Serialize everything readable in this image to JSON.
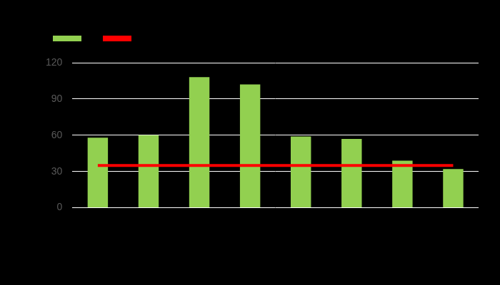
{
  "chart_data": {
    "type": "bar",
    "categories": [
      null,
      null,
      null,
      null,
      null,
      null,
      null,
      null
    ],
    "series": [
      {
        "type": "bar",
        "color": "#92d050",
        "values": [
          58,
          60,
          108,
          102,
          59,
          57,
          39,
          32
        ]
      },
      {
        "type": "line",
        "color": "#ff0000",
        "line_style": "solid",
        "values": [
          35,
          35,
          35,
          35,
          35,
          35,
          35,
          35
        ]
      }
    ],
    "ylim": [
      0,
      120
    ],
    "yticks": [
      0,
      30,
      60,
      90,
      120
    ],
    "grid": true,
    "legend": "top"
  }
}
